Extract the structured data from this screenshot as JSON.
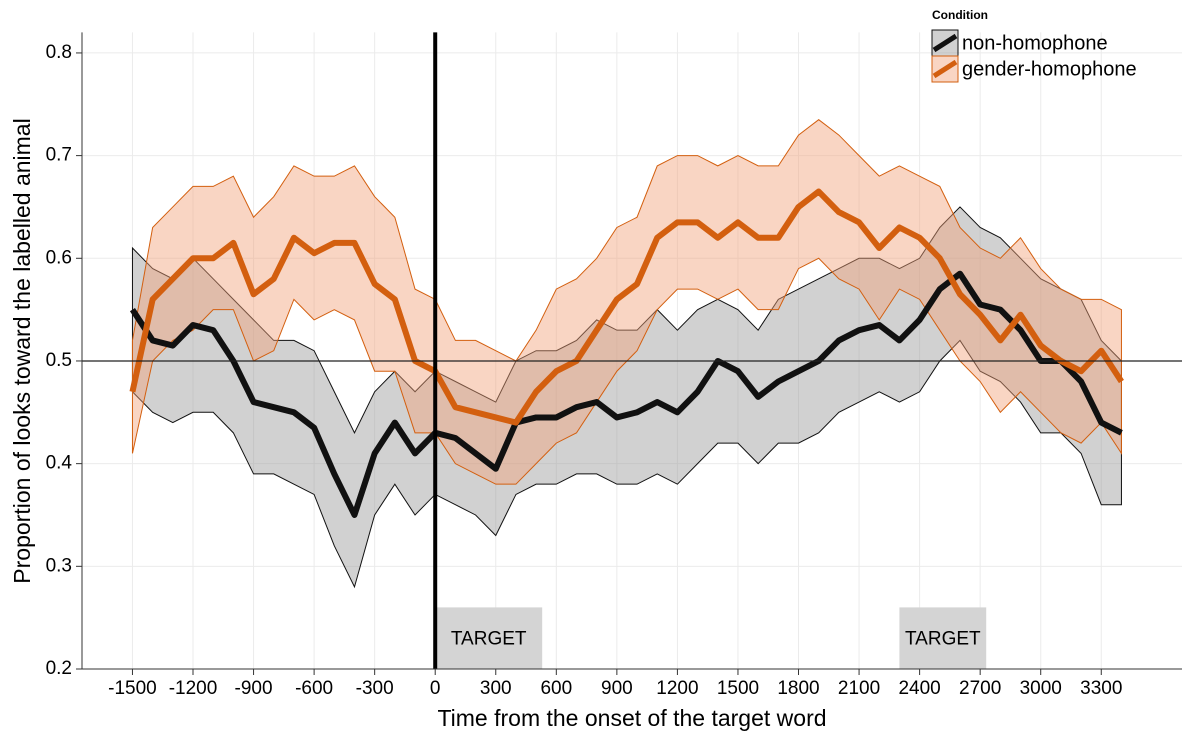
{
  "chart_data": {
    "type": "line",
    "x_label": "Time from the onset of the target word",
    "y_label": "Proportion of looks toward the labelled animal",
    "legend_title": "Condition",
    "legend_position": "top-right",
    "grid": true,
    "xlim": [
      -1750,
      3700
    ],
    "ylim": [
      0.2,
      0.82
    ],
    "xticks": [
      -1500,
      -1200,
      -900,
      -600,
      -300,
      0,
      300,
      600,
      900,
      1200,
      1500,
      1800,
      2100,
      2400,
      2700,
      3000,
      3300
    ],
    "yticks": [
      0.2,
      0.3,
      0.4,
      0.5,
      0.6,
      0.7,
      0.8
    ],
    "vline": 0,
    "hline": 0.5,
    "regions": [
      {
        "x0": 0,
        "x1": 530,
        "y0": 0.2,
        "y1": 0.26,
        "label": "TARGET"
      },
      {
        "x0": 2300,
        "x1": 2730,
        "y0": 0.2,
        "y1": 0.26,
        "label": "TARGET"
      }
    ],
    "x": [
      -1500,
      -1400,
      -1300,
      -1200,
      -1100,
      -1000,
      -900,
      -800,
      -700,
      -600,
      -500,
      -400,
      -300,
      -200,
      -100,
      0,
      100,
      200,
      300,
      400,
      500,
      600,
      700,
      800,
      900,
      1000,
      1100,
      1200,
      1300,
      1400,
      1500,
      1600,
      1700,
      1800,
      1900,
      2000,
      2100,
      2200,
      2300,
      2400,
      2500,
      2600,
      2700,
      2800,
      2900,
      3000,
      3100,
      3200,
      3300,
      3400
    ],
    "series": [
      {
        "name": "non-homophone",
        "color": "#111111",
        "band_color": "#9a9a9a",
        "values": [
          0.55,
          0.52,
          0.515,
          0.535,
          0.53,
          0.5,
          0.46,
          0.455,
          0.45,
          0.435,
          0.39,
          0.35,
          0.41,
          0.44,
          0.41,
          0.43,
          0.425,
          0.41,
          0.395,
          0.44,
          0.445,
          0.445,
          0.455,
          0.46,
          0.445,
          0.45,
          0.46,
          0.45,
          0.47,
          0.5,
          0.49,
          0.465,
          0.48,
          0.49,
          0.5,
          0.52,
          0.53,
          0.535,
          0.52,
          0.54,
          0.57,
          0.585,
          0.555,
          0.55,
          0.53,
          0.5,
          0.5,
          0.48,
          0.44,
          0.43
        ],
        "upper": [
          0.61,
          0.59,
          0.58,
          0.6,
          0.58,
          0.56,
          0.54,
          0.52,
          0.52,
          0.51,
          0.47,
          0.43,
          0.47,
          0.49,
          0.47,
          0.49,
          0.48,
          0.47,
          0.46,
          0.5,
          0.51,
          0.51,
          0.52,
          0.54,
          0.53,
          0.53,
          0.55,
          0.53,
          0.55,
          0.56,
          0.55,
          0.53,
          0.56,
          0.57,
          0.58,
          0.59,
          0.6,
          0.6,
          0.59,
          0.6,
          0.63,
          0.65,
          0.63,
          0.62,
          0.6,
          0.58,
          0.57,
          0.56,
          0.52,
          0.5
        ],
        "lower": [
          0.47,
          0.45,
          0.44,
          0.45,
          0.45,
          0.43,
          0.39,
          0.39,
          0.38,
          0.37,
          0.32,
          0.28,
          0.35,
          0.38,
          0.35,
          0.37,
          0.36,
          0.35,
          0.33,
          0.37,
          0.38,
          0.38,
          0.39,
          0.39,
          0.38,
          0.38,
          0.39,
          0.38,
          0.4,
          0.42,
          0.42,
          0.4,
          0.42,
          0.42,
          0.43,
          0.45,
          0.46,
          0.47,
          0.46,
          0.47,
          0.5,
          0.52,
          0.49,
          0.48,
          0.46,
          0.43,
          0.43,
          0.41,
          0.36,
          0.36
        ]
      },
      {
        "name": "gender-homophone",
        "color": "#d35f0f",
        "band_color": "#f2a27a",
        "values": [
          0.47,
          0.56,
          0.58,
          0.6,
          0.6,
          0.615,
          0.565,
          0.58,
          0.62,
          0.605,
          0.615,
          0.615,
          0.575,
          0.56,
          0.5,
          0.49,
          0.455,
          0.45,
          0.445,
          0.44,
          0.47,
          0.49,
          0.5,
          0.53,
          0.56,
          0.575,
          0.62,
          0.635,
          0.635,
          0.62,
          0.635,
          0.62,
          0.62,
          0.65,
          0.665,
          0.645,
          0.635,
          0.61,
          0.63,
          0.62,
          0.6,
          0.565,
          0.545,
          0.52,
          0.545,
          0.515,
          0.5,
          0.49,
          0.51,
          0.48
        ],
        "upper": [
          0.52,
          0.63,
          0.65,
          0.67,
          0.67,
          0.68,
          0.64,
          0.66,
          0.69,
          0.68,
          0.68,
          0.69,
          0.66,
          0.64,
          0.57,
          0.56,
          0.52,
          0.52,
          0.51,
          0.5,
          0.53,
          0.57,
          0.58,
          0.6,
          0.63,
          0.64,
          0.69,
          0.7,
          0.7,
          0.69,
          0.7,
          0.69,
          0.69,
          0.72,
          0.735,
          0.72,
          0.7,
          0.68,
          0.69,
          0.68,
          0.67,
          0.63,
          0.61,
          0.6,
          0.62,
          0.59,
          0.57,
          0.56,
          0.56,
          0.55
        ],
        "lower": [
          0.41,
          0.5,
          0.52,
          0.53,
          0.55,
          0.55,
          0.5,
          0.51,
          0.56,
          0.54,
          0.55,
          0.54,
          0.49,
          0.49,
          0.43,
          0.43,
          0.4,
          0.39,
          0.38,
          0.38,
          0.4,
          0.42,
          0.43,
          0.46,
          0.49,
          0.51,
          0.55,
          0.57,
          0.57,
          0.56,
          0.57,
          0.55,
          0.55,
          0.59,
          0.6,
          0.58,
          0.57,
          0.54,
          0.57,
          0.56,
          0.53,
          0.5,
          0.48,
          0.45,
          0.47,
          0.45,
          0.43,
          0.42,
          0.44,
          0.41
        ]
      }
    ]
  }
}
